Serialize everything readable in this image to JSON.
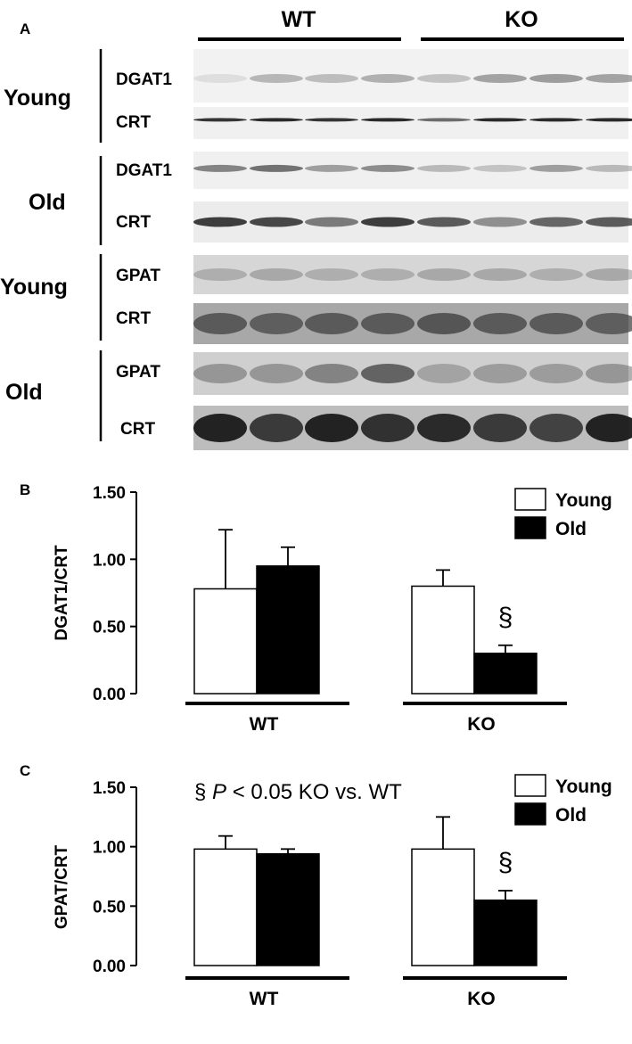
{
  "panel_a": {
    "panel_label": "A",
    "groups": [
      "WT",
      "KO"
    ],
    "rows": [
      {
        "age": "Young",
        "proteins": [
          "DGAT1",
          "CRT"
        ]
      },
      {
        "age": "Old",
        "proteins": [
          "DGAT1",
          "CRT"
        ]
      },
      {
        "age": "Young",
        "proteins": [
          "GPAT",
          "CRT"
        ]
      },
      {
        "age": "Old",
        "proteins": [
          "GPAT",
          "CRT"
        ]
      }
    ]
  },
  "colors": {
    "young": "#ffffff",
    "old": "#000000",
    "outline": "#000000"
  },
  "chart_data": [
    {
      "panel_label": "B",
      "type": "bar",
      "ylabel": "DGAT1/CRT",
      "ylim": [
        0,
        1.5
      ],
      "yticks": [
        "0.00",
        "0.50",
        "1.00",
        "1.50"
      ],
      "ytick_values": [
        0,
        0.5,
        1.0,
        1.5
      ],
      "categories": [
        "WT",
        "KO"
      ],
      "series": [
        {
          "name": "Young",
          "values": [
            0.78,
            0.8
          ],
          "errors": [
            0.44,
            0.12
          ]
        },
        {
          "name": "Old",
          "values": [
            0.95,
            0.3
          ],
          "errors": [
            0.14,
            0.06
          ]
        }
      ],
      "annotations": [
        {
          "text": "§",
          "category": "KO"
        }
      ],
      "legend": "top-right",
      "grid": false
    },
    {
      "panel_label": "C",
      "type": "bar",
      "ylabel": "GPAT/CRT",
      "ylim": [
        0,
        1.5
      ],
      "yticks": [
        "0.00",
        "0.50",
        "1.00",
        "1.50"
      ],
      "ytick_values": [
        0,
        0.5,
        1.0,
        1.5
      ],
      "categories": [
        "WT",
        "KO"
      ],
      "series": [
        {
          "name": "Young",
          "values": [
            0.98,
            0.98
          ],
          "errors": [
            0.11,
            0.27
          ]
        },
        {
          "name": "Old",
          "values": [
            0.94,
            0.55
          ],
          "errors": [
            0.04,
            0.08
          ]
        }
      ],
      "annotations": [
        {
          "text": "§",
          "category": "KO"
        }
      ],
      "note": {
        "prefix": "§ ",
        "italic": "P",
        "suffix": " < 0.05 KO vs. WT"
      },
      "legend": "top-right",
      "grid": false
    }
  ]
}
